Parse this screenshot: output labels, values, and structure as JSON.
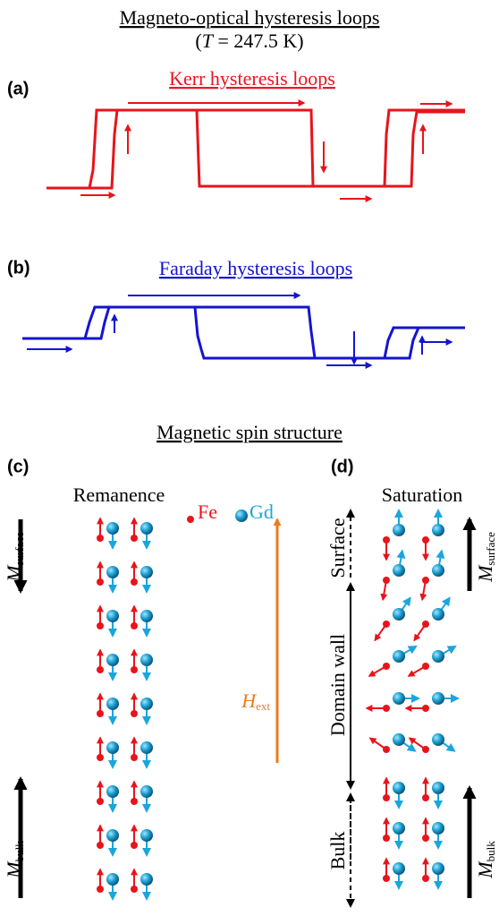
{
  "title": "Magneto-optical hysteresis loops",
  "temperature": {
    "open": "(",
    "symbol": "T",
    "rest": " = 247.5 K)"
  },
  "panels": [
    {
      "label": "(a)",
      "title": "Kerr hysteresis loops"
    },
    {
      "label": "(b)",
      "title": "Faraday hysteresis loops"
    },
    {
      "label": "(c)",
      "title": "Remanence"
    },
    {
      "label": "(d)",
      "title": "Saturation"
    }
  ],
  "section_title": "Magnetic spin structure",
  "legend": [
    "Fe",
    "Gd"
  ],
  "quantities": {
    "m_surface": {
      "symbol": "M",
      "subscript": "surface"
    },
    "m_bulk": {
      "symbol": "M",
      "subscript": "bulk"
    },
    "h_ext": {
      "symbol": "H",
      "subscript": "ext"
    }
  },
  "regions": [
    "Surface",
    "Domain wall",
    "Bulk"
  ]
}
